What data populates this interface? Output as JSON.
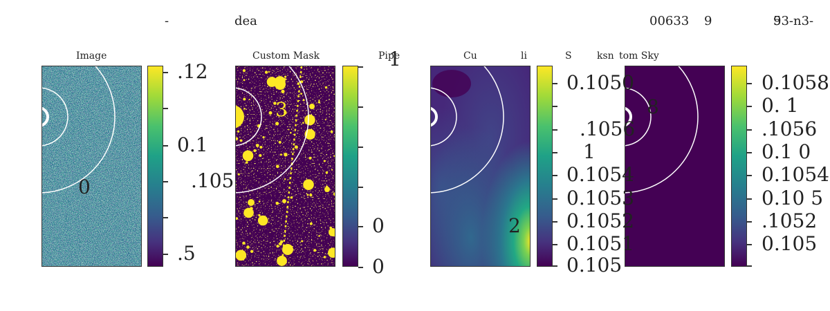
{
  "header": {
    "left_dash": "-",
    "left_text": "dea",
    "right_num": "00633",
    "right_nine": "9",
    "right_tag": "93-n3-",
    "right_tag_overlap": "5"
  },
  "panels": [
    {
      "title": "Image",
      "overlay": "0",
      "cbar_labels": [
        ".12",
        "0.1",
        ".105",
        ".5"
      ]
    },
    {
      "title": "Custom Mask",
      "overlay": "3",
      "cbar_labels": [
        "1",
        "0",
        "0"
      ]
    },
    {
      "title_parts": [
        "Cu",
        "li",
        "S",
        "ksn"
      ],
      "side_text": "Pipe",
      "overlay": "2",
      "cbar_labels": [
        "0.1050",
        ".1056",
        "1",
        "0.1054",
        "0.1053",
        "0.1052",
        "0.1051",
        "0.105"
      ]
    },
    {
      "title": "tom Sky",
      "overlay": "8",
      "cbar_labels": [
        "0.1058",
        "0.  1",
        ".1056",
        "0.1   0",
        "0.1054",
        "0.10   5",
        ".1052",
        "0.105"
      ]
    }
  ],
  "colors": {
    "viridis_low": "#440154",
    "viridis_high": "#fde725",
    "ring": "#ffffff"
  },
  "chart_data": {
    "type": "heatmap",
    "panels": [
      {
        "name": "Image",
        "colormap": "viridis"
      },
      {
        "name": "Custom Mask",
        "colormap": "viridis",
        "range": [
          0,
          1
        ]
      },
      {
        "name": "Custom Sky",
        "colormap": "viridis"
      },
      {
        "name": "Custom Sky",
        "colormap": "viridis",
        "uniform": true
      }
    ]
  }
}
